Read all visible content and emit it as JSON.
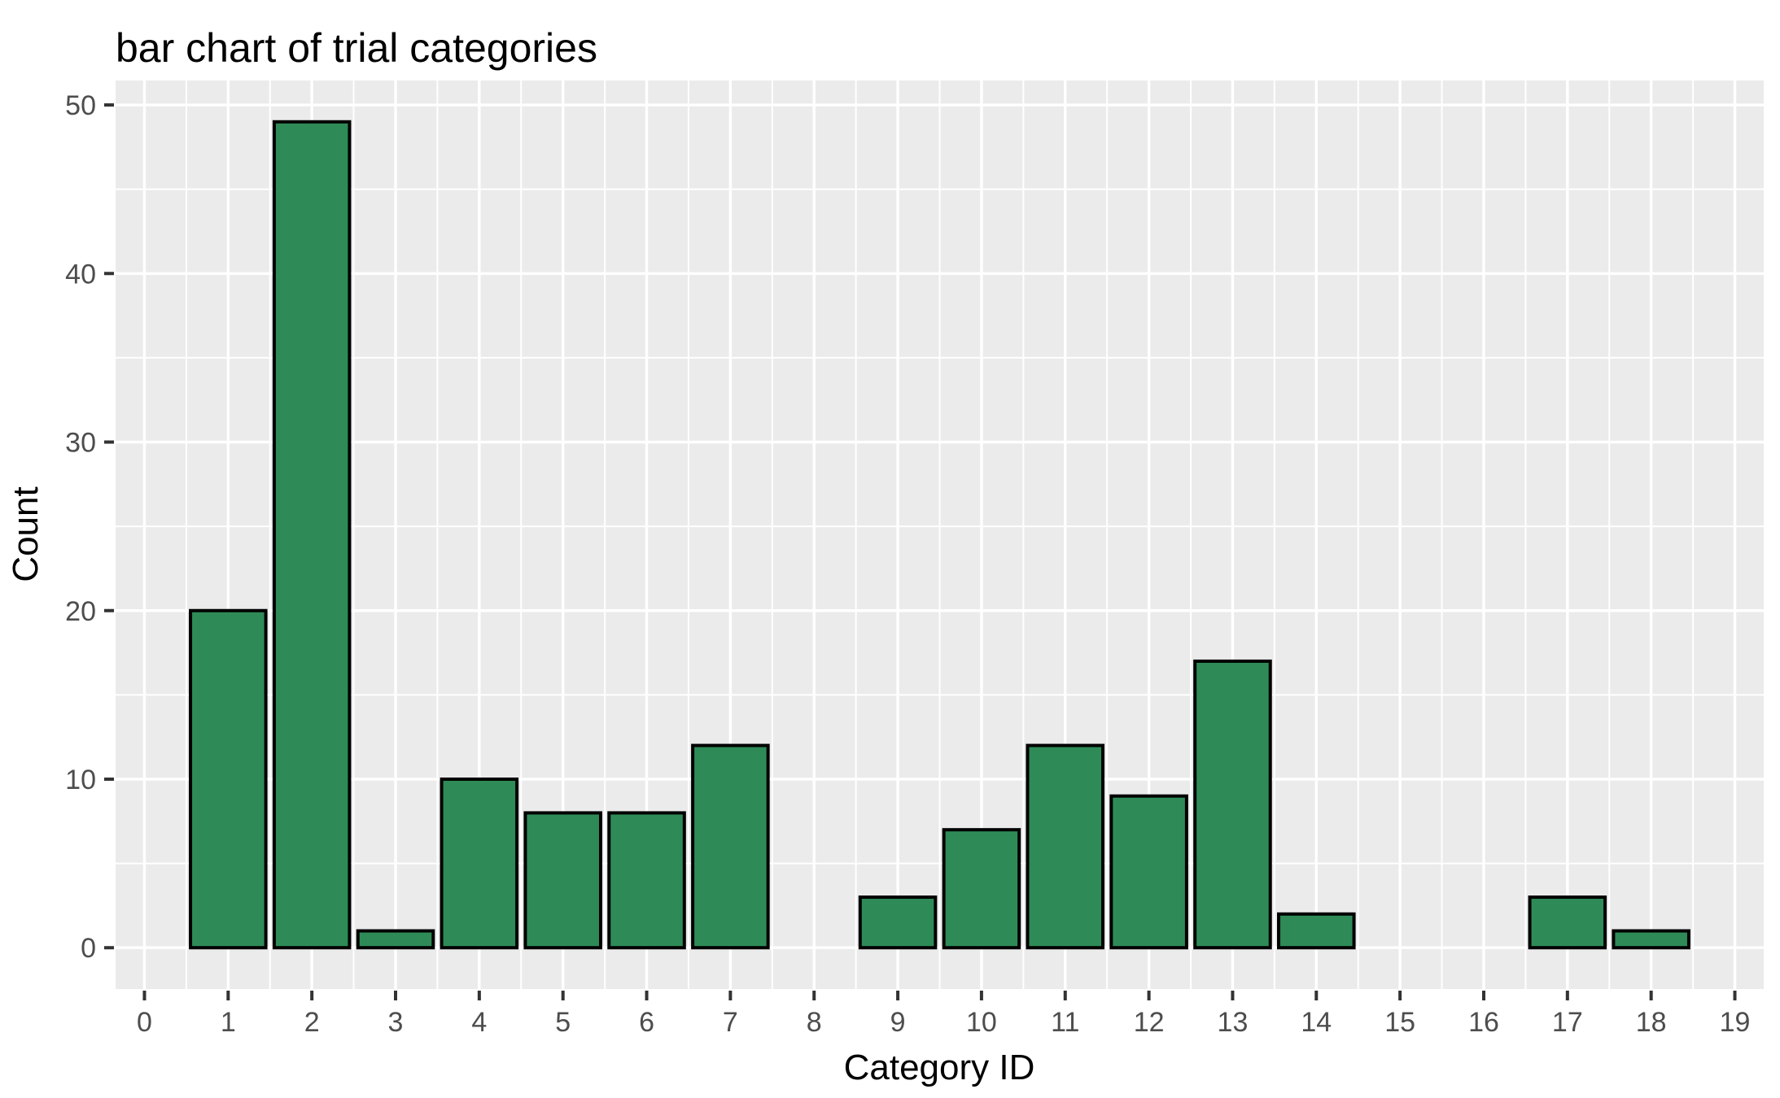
{
  "chart_data": {
    "type": "bar",
    "title": "bar chart of trial categories",
    "xlabel": "Category ID",
    "ylabel": "Count",
    "categories": [
      0,
      1,
      2,
      3,
      4,
      5,
      6,
      7,
      8,
      9,
      10,
      11,
      12,
      13,
      14,
      15,
      16,
      17,
      18,
      19
    ],
    "values": [
      0,
      20,
      49,
      1,
      10,
      8,
      8,
      12,
      0,
      3,
      7,
      12,
      9,
      17,
      2,
      0,
      0,
      3,
      1,
      0
    ],
    "x_ticks": [
      0,
      1,
      2,
      3,
      4,
      5,
      6,
      7,
      8,
      9,
      10,
      11,
      12,
      13,
      14,
      15,
      16,
      17,
      18,
      19
    ],
    "y_ticks": [
      0,
      10,
      20,
      30,
      40,
      50
    ],
    "y_minor_ticks": [
      5,
      15,
      25,
      35,
      45
    ],
    "x_minor_tick_offset": 0.5,
    "xlim": [
      -0.345,
      19.345
    ],
    "ylim": [
      -2.45,
      51.45
    ],
    "bar_width": 0.9,
    "grid": true,
    "legend_position": "none",
    "colors": {
      "bar_fill": "#2e8b57",
      "bar_stroke": "#000000",
      "panel_background": "#ebebeb",
      "gridline": "#ffffff",
      "tick_mark": "#333333",
      "tick_label": "#4d4d4d",
      "title_text": "#000000",
      "page_background": "#ffffff"
    }
  }
}
